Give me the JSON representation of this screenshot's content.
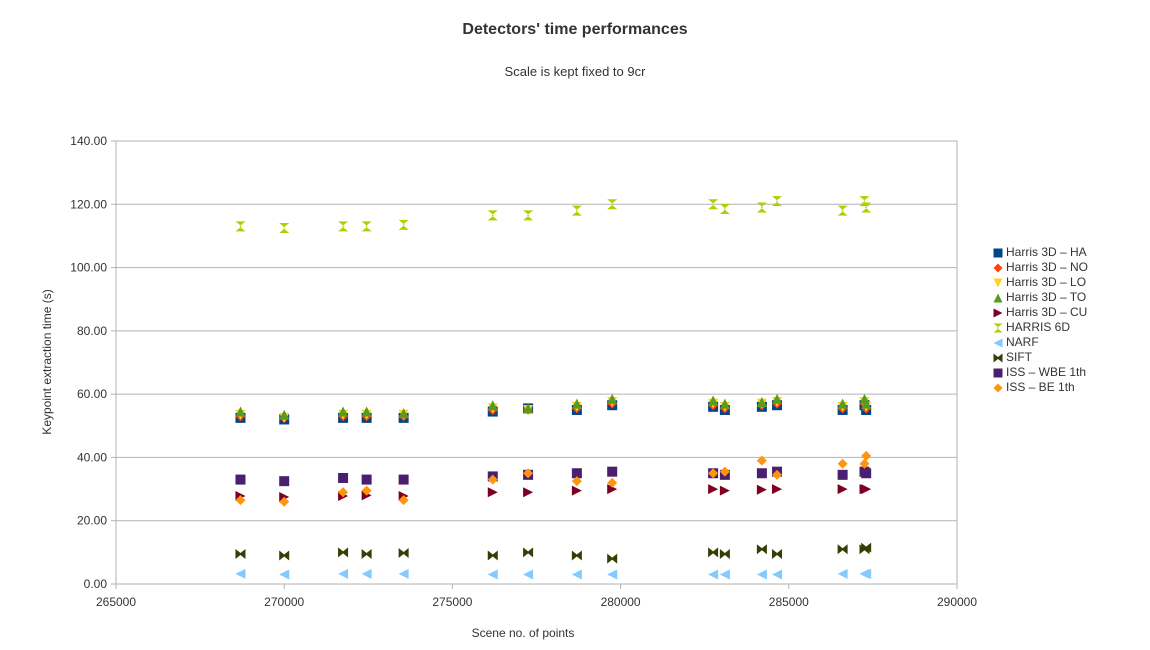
{
  "chart_data": {
    "type": "scatter",
    "title": "Detectors' time performances",
    "subtitle": "Scale is kept fixed to 9cr",
    "xlabel": "Scene no. of points",
    "ylabel": "Keypoint extraction time (s)",
    "xlim": [
      265000,
      290000
    ],
    "ylim": [
      0,
      140
    ],
    "x_ticks": [
      265000,
      270000,
      275000,
      280000,
      285000,
      290000
    ],
    "y_ticks": [
      0,
      20,
      40,
      60,
      80,
      100,
      120,
      140
    ],
    "x_tick_labels": [
      "265000",
      "270000",
      "275000",
      "280000",
      "285000",
      "290000"
    ],
    "y_tick_labels": [
      "0.00",
      "20.00",
      "40.00",
      "60.00",
      "80.00",
      "100.00",
      "120.00",
      "140.00"
    ],
    "grid": "horizontal",
    "legend_position": "right",
    "x": [
      268700,
      270000,
      271750,
      272450,
      273550,
      276200,
      277250,
      278700,
      279750,
      282750,
      283100,
      284200,
      284650,
      286600,
      287250,
      287300
    ],
    "series": [
      {
        "name": "Harris 3D – HA",
        "marker": "square",
        "color": "#004586",
        "values": [
          52.5,
          52.0,
          52.5,
          52.5,
          52.5,
          54.5,
          55.5,
          55.0,
          56.5,
          56.0,
          55.0,
          56.0,
          56.5,
          55.0,
          56.5,
          55.0
        ]
      },
      {
        "name": "Harris 3D – NO",
        "marker": "diamond",
        "color": "#ff420e",
        "values": [
          53.0,
          52.5,
          53.0,
          53.0,
          53.0,
          55.0,
          55.0,
          55.5,
          57.0,
          56.5,
          55.5,
          56.5,
          57.0,
          55.5,
          57.0,
          55.5
        ]
      },
      {
        "name": "Harris 3D – LO",
        "marker": "triangle-down",
        "color": "#ffd320",
        "values": [
          53.5,
          52.5,
          53.5,
          53.5,
          53.5,
          55.5,
          55.0,
          56.0,
          57.5,
          57.0,
          56.0,
          57.0,
          57.5,
          56.0,
          57.5,
          56.0
        ]
      },
      {
        "name": "Harris 3D – TO",
        "marker": "triangle-up",
        "color": "#579d1c",
        "values": [
          54.5,
          53.5,
          54.5,
          54.5,
          54.0,
          56.5,
          55.5,
          57.0,
          58.5,
          58.0,
          57.0,
          57.5,
          58.5,
          57.0,
          58.5,
          57.0
        ]
      },
      {
        "name": "Harris 3D – CU",
        "marker": "triangle-right",
        "color": "#7e0021",
        "values": [
          27.8,
          27.5,
          27.8,
          28.0,
          27.8,
          29.0,
          29.0,
          29.5,
          30.0,
          30.0,
          29.5,
          29.8,
          30.0,
          30.0,
          30.0,
          30.0
        ]
      },
      {
        "name": "HARRIS 6D",
        "marker": "hourglass",
        "color": "#aecf00",
        "values": [
          113.0,
          112.5,
          113.0,
          113.0,
          113.5,
          116.5,
          116.5,
          118.0,
          120.0,
          120.0,
          118.5,
          119.0,
          121.0,
          118.0,
          121.0,
          119.0
        ]
      },
      {
        "name": "NARF",
        "marker": "triangle-left",
        "color": "#83caff",
        "values": [
          3.2,
          3.0,
          3.2,
          3.2,
          3.2,
          3.0,
          3.0,
          3.0,
          3.0,
          3.0,
          3.0,
          3.0,
          3.0,
          3.2,
          3.2,
          3.2
        ]
      },
      {
        "name": " SIFT",
        "marker": "bowtie",
        "color": "#314004",
        "values": [
          9.5,
          9.0,
          10.0,
          9.5,
          9.8,
          9.0,
          10.0,
          9.0,
          8.0,
          10.0,
          9.5,
          11.0,
          9.5,
          11.0,
          11.0,
          11.5
        ]
      },
      {
        "name": "ISS – WBE 1th",
        "marker": "square",
        "color": "#4b1f6f",
        "values": [
          33.0,
          32.5,
          33.5,
          33.0,
          33.0,
          34.0,
          34.5,
          35.0,
          35.5,
          35.0,
          34.5,
          35.0,
          35.5,
          34.5,
          35.5,
          35.0
        ]
      },
      {
        "name": "ISS – BE 1th",
        "marker": "diamond",
        "color": "#ff950e",
        "values": [
          26.5,
          26.0,
          29.0,
          29.5,
          26.5,
          33.0,
          35.0,
          32.5,
          32.0,
          35.0,
          35.5,
          39.0,
          34.5,
          38.0,
          38.0,
          40.5
        ]
      }
    ]
  }
}
